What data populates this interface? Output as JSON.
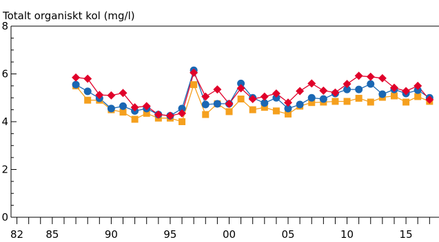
{
  "chart_data": {
    "type": "line",
    "title": "Totalt organiskt kol (mg/l)",
    "xlabel": "",
    "ylabel": "",
    "xlim": [
      1981.5,
      2017.8
    ],
    "ylim": [
      0,
      8
    ],
    "y_ticks": [
      0,
      2,
      4,
      6,
      8
    ],
    "y_tick_labels": [
      "0",
      "2",
      "4",
      "6",
      "8"
    ],
    "x_ticks": [
      1982,
      1985,
      1990,
      1995,
      2000,
      2005,
      2010,
      2015
    ],
    "x_tick_labels": [
      "82",
      "85",
      "90",
      "95",
      "00",
      "05",
      "10",
      "15"
    ],
    "x_minor_ticks": [
      1982,
      1983,
      1984,
      1985,
      1986,
      1987,
      1988,
      1989,
      1990,
      1991,
      1992,
      1993,
      1994,
      1995,
      1996,
      1997,
      1998,
      1999,
      2000,
      2001,
      2002,
      2003,
      2004,
      2005,
      2006,
      2007,
      2008,
      2009,
      2010,
      2011,
      2012,
      2013,
      2014,
      2015,
      2016,
      2017
    ],
    "grid": false,
    "legend": "none",
    "x": [
      1987,
      1988,
      1989,
      1990,
      1991,
      1992,
      1993,
      1994,
      1995,
      1996,
      1997,
      1998,
      1999,
      2000,
      2001,
      2002,
      2003,
      2004,
      2005,
      2006,
      2007,
      2008,
      2009,
      2010,
      2011,
      2012,
      2013,
      2014,
      2015,
      2016,
      2017
    ],
    "series": [
      {
        "marker": "diamond",
        "color": "#e0002a",
        "values": [
          5.85,
          5.8,
          5.12,
          5.1,
          5.2,
          4.6,
          4.65,
          4.3,
          4.25,
          4.35,
          6.05,
          5.05,
          5.35,
          4.75,
          5.4,
          4.95,
          5.05,
          5.18,
          4.8,
          5.28,
          5.6,
          5.3,
          5.22,
          5.58,
          5.92,
          5.88,
          5.82,
          5.42,
          5.28,
          5.5,
          4.92
        ]
      },
      {
        "marker": "circle",
        "color": "#1a67b3",
        "values": [
          5.55,
          5.27,
          4.98,
          4.55,
          4.65,
          4.45,
          4.55,
          4.3,
          4.25,
          4.55,
          6.15,
          4.72,
          4.75,
          4.75,
          5.6,
          5.0,
          4.78,
          5.0,
          4.55,
          4.72,
          5.0,
          4.95,
          5.18,
          5.35,
          5.35,
          5.58,
          5.15,
          5.35,
          5.18,
          5.32,
          5.0
        ]
      },
      {
        "marker": "square",
        "color": "#f5a01e",
        "values": [
          5.5,
          4.9,
          4.9,
          4.5,
          4.4,
          4.1,
          4.35,
          4.15,
          4.15,
          4.0,
          5.55,
          4.3,
          4.75,
          4.42,
          4.95,
          4.5,
          4.6,
          4.45,
          4.32,
          4.65,
          4.8,
          4.82,
          4.85,
          4.85,
          4.98,
          4.82,
          5.02,
          5.08,
          4.82,
          5.05,
          4.85
        ]
      }
    ]
  }
}
